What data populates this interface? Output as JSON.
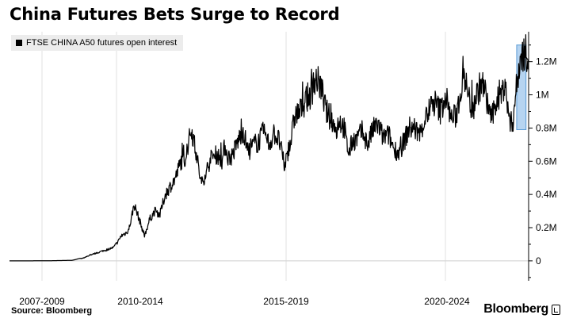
{
  "chart_data": {
    "type": "line",
    "title": "China Futures Bets Surge to Record",
    "xlabel": "",
    "ylabel": "",
    "x_tick_labels": [
      "2007-2009",
      "2010-2014",
      "2015-2019",
      "2020-2024"
    ],
    "y_tick_labels": [
      "1.2M",
      "1M",
      "0.8M",
      "0.6M",
      "0.4M",
      "0.2M",
      "0"
    ],
    "y_ticks": [
      1200000,
      1000000,
      800000,
      600000,
      400000,
      200000,
      0
    ],
    "ylim": [
      -120000,
      1380000
    ],
    "legend": "top-left",
    "grid": "vertical",
    "highlight": {
      "x_range": [
        0.977,
        0.995
      ],
      "y_range": [
        790000,
        1300000
      ],
      "color": "#a9cdee"
    },
    "series": [
      {
        "name": "FTSE CHINA A50 futures open interest",
        "x_positions": [
          0,
          0.04,
          0.08,
          0.1,
          0.12,
          0.125,
          0.135,
          0.14,
          0.16,
          0.18,
          0.2,
          0.21,
          0.215,
          0.22,
          0.225,
          0.23,
          0.235,
          0.24,
          0.25,
          0.26,
          0.27,
          0.28,
          0.29,
          0.3,
          0.31,
          0.32,
          0.33,
          0.34,
          0.35,
          0.36,
          0.365,
          0.37,
          0.38,
          0.39,
          0.4,
          0.41,
          0.415,
          0.42,
          0.425,
          0.43,
          0.44,
          0.45,
          0.46,
          0.47,
          0.48,
          0.49,
          0.5,
          0.51,
          0.52,
          0.53,
          0.535,
          0.54,
          0.55,
          0.56,
          0.57,
          0.58,
          0.59,
          0.6,
          0.61,
          0.62,
          0.63,
          0.635,
          0.64,
          0.645,
          0.65,
          0.655,
          0.66,
          0.67,
          0.68,
          0.69,
          0.7,
          0.71,
          0.72,
          0.73,
          0.74,
          0.75,
          0.76,
          0.77,
          0.78,
          0.79,
          0.8,
          0.81,
          0.82,
          0.83,
          0.84,
          0.85,
          0.86,
          0.87,
          0.875,
          0.88,
          0.89,
          0.9,
          0.91,
          0.92,
          0.93,
          0.94,
          0.95,
          0.955,
          0.96,
          0.965,
          0.97,
          0.975,
          0.98,
          0.985,
          0.99
        ],
        "values": [
          0,
          0,
          1000,
          2000,
          3000,
          6000,
          14000,
          15000,
          40000,
          60000,
          80000,
          120000,
          150000,
          160000,
          170000,
          190000,
          260000,
          340000,
          250000,
          150000,
          250000,
          300000,
          280000,
          400000,
          450000,
          500000,
          600000,
          620000,
          800000,
          650000,
          540000,
          460000,
          550000,
          630000,
          640000,
          600000,
          700000,
          630000,
          620000,
          640000,
          720000,
          790000,
          650000,
          700000,
          720000,
          780000,
          700000,
          770000,
          720000,
          560000,
          650000,
          690000,
          880000,
          900000,
          970000,
          1000000,
          1100000,
          1050000,
          900000,
          850000,
          780000,
          860000,
          820000,
          800000,
          690000,
          650000,
          720000,
          740000,
          780000,
          700000,
          790000,
          820000,
          740000,
          760000,
          680000,
          650000,
          720000,
          800000,
          800000,
          760000,
          850000,
          920000,
          950000,
          900000,
          1000000,
          860000,
          870000,
          1040000,
          1170000,
          1050000,
          920000,
          1000000,
          1080000,
          950000,
          860000,
          990000,
          1020000,
          1100000,
          900000,
          820000,
          850000,
          1000000,
          1130000,
          1230000,
          1250000
        ]
      }
    ]
  },
  "legend_label": "FTSE CHINA A50 futures open interest",
  "source": "Source: Bloomberg",
  "brand": "Bloomberg"
}
